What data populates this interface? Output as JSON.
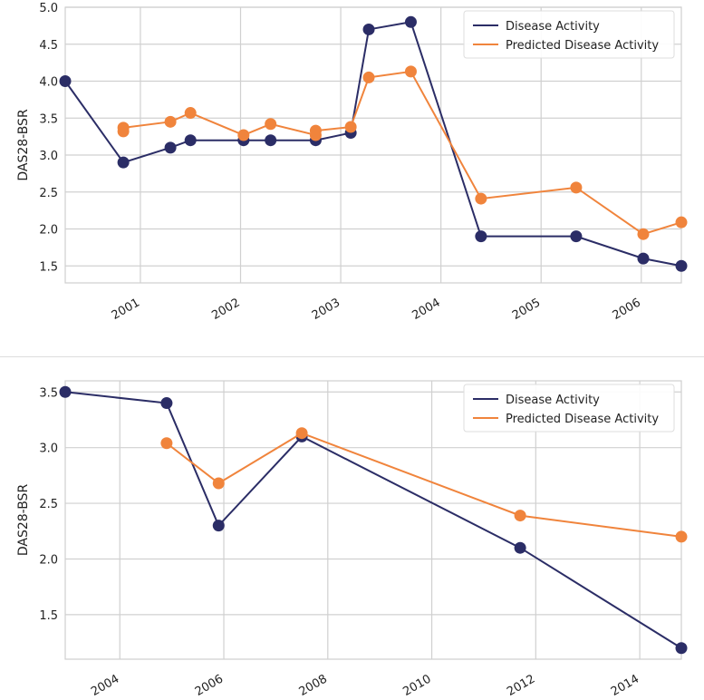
{
  "colors": {
    "actual": "#2b2d66",
    "predicted": "#f0843c",
    "grid": "#d0d0d0",
    "frame": "#cfcfcf"
  },
  "chart_data": [
    {
      "type": "line",
      "ylabel": "DAS28-BSR",
      "xlabel": "",
      "xlim": [
        2000.25,
        2006.4
      ],
      "ylim": [
        1.27,
        5.0
      ],
      "x_ticks": [
        2001,
        2002,
        2003,
        2004,
        2005,
        2006
      ],
      "x_tick_labels": [
        "2001",
        "2002",
        "2003",
        "2004",
        "2005",
        "2006"
      ],
      "y_ticks": [
        1.5,
        2.0,
        2.5,
        3.0,
        3.5,
        4.0,
        4.5,
        5.0
      ],
      "y_tick_labels": [
        "1.5",
        "2.0",
        "2.5",
        "3.0",
        "3.5",
        "4.0",
        "4.5",
        "5.0"
      ],
      "legend": [
        "Disease Activity",
        "Predicted Disease Activity"
      ],
      "legend_position": "top-right",
      "series": [
        {
          "name": "Disease Activity",
          "x": [
            2000.25,
            2000.83,
            2001.3,
            2001.5,
            2002.03,
            2002.3,
            2002.75,
            2003.1,
            2003.28,
            2003.7,
            2004.4,
            2005.35,
            2006.02,
            2006.4
          ],
          "y": [
            4.0,
            2.9,
            3.1,
            3.2,
            3.2,
            3.2,
            3.2,
            3.3,
            4.7,
            4.8,
            1.9,
            1.9,
            1.6,
            1.5
          ]
        },
        {
          "name": "Predicted Disease Activity",
          "x": [
            2000.83,
            2000.83,
            2001.3,
            2001.5,
            2002.03,
            2002.3,
            2002.75,
            2002.75,
            2003.1,
            2003.28,
            2003.7,
            2004.4,
            2005.35,
            2006.02,
            2006.4
          ],
          "y": [
            3.32,
            3.37,
            3.45,
            3.57,
            3.27,
            3.42,
            3.27,
            3.33,
            3.38,
            4.05,
            4.13,
            2.41,
            2.56,
            1.93,
            2.09
          ]
        }
      ]
    },
    {
      "type": "line",
      "ylabel": "DAS28-BSR",
      "xlabel": "",
      "xlim": [
        2002.95,
        2014.8
      ],
      "ylim": [
        1.1,
        3.6
      ],
      "x_ticks": [
        2004,
        2006,
        2008,
        2010,
        2012,
        2014
      ],
      "x_tick_labels": [
        "2004",
        "2006",
        "2008",
        "2010",
        "2012",
        "2014"
      ],
      "y_ticks": [
        1.5,
        2.0,
        2.5,
        3.0,
        3.5
      ],
      "y_tick_labels": [
        "1.5",
        "2.0",
        "2.5",
        "3.0",
        "3.5"
      ],
      "legend": [
        "Disease Activity",
        "Predicted Disease Activity"
      ],
      "legend_position": "top-right",
      "series": [
        {
          "name": "Disease Activity",
          "x": [
            2002.95,
            2004.9,
            2005.9,
            2007.5,
            2011.7,
            2014.8
          ],
          "y": [
            3.5,
            3.4,
            2.3,
            3.1,
            2.1,
            1.2
          ]
        },
        {
          "name": "Predicted Disease Activity",
          "x": [
            2004.9,
            2005.9,
            2007.5,
            2011.7,
            2014.8
          ],
          "y": [
            3.04,
            2.68,
            3.13,
            2.39,
            2.2
          ]
        }
      ]
    }
  ]
}
